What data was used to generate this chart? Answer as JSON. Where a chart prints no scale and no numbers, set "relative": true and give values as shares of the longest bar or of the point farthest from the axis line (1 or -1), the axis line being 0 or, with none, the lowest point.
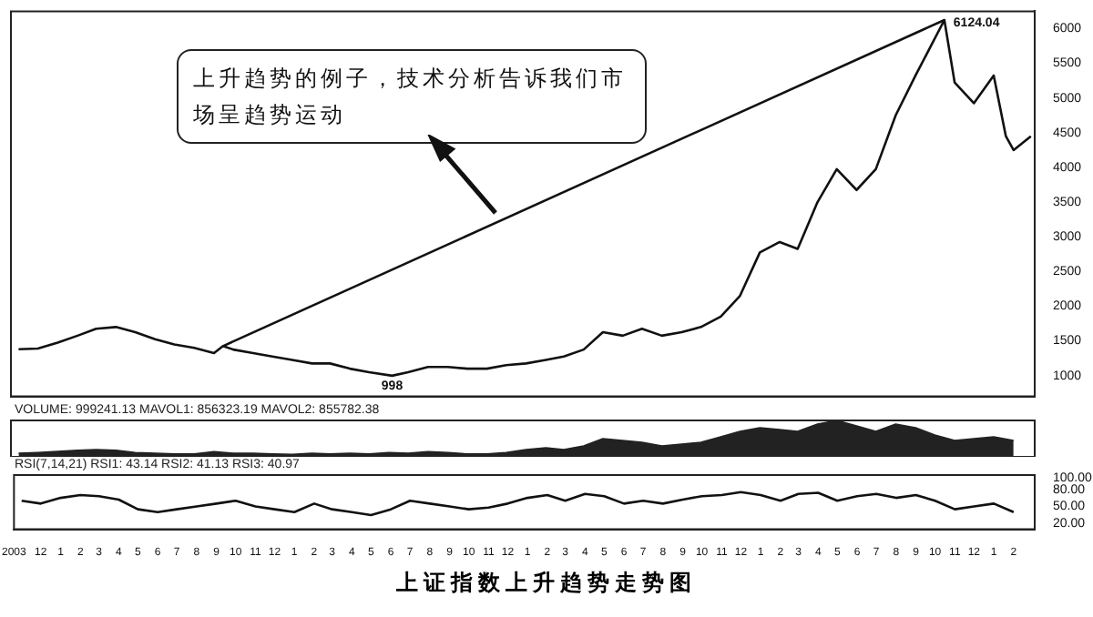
{
  "chart_data": [
    {
      "type": "line",
      "title": "上证指数上升趋势走势图",
      "x": [
        "2003-11",
        "2003-12",
        "2004-01",
        "2004-02",
        "2004-03",
        "2004-04",
        "2004-05",
        "2004-06",
        "2004-07",
        "2004-08",
        "2004-09",
        "2004-09-15",
        "2004-10",
        "2004-11",
        "2004-12",
        "2005-01",
        "2005-02",
        "2005-03",
        "2005-04",
        "2005-05",
        "2005-06-06",
        "2005-07",
        "2005-08",
        "2005-09",
        "2005-10",
        "2005-11",
        "2005-12",
        "2006-01",
        "2006-02",
        "2006-03",
        "2006-04",
        "2006-05",
        "2006-06",
        "2006-07",
        "2006-08",
        "2006-09",
        "2006-10",
        "2006-11",
        "2006-12",
        "2007-01",
        "2007-02",
        "2007-03",
        "2007-04",
        "2007-05",
        "2007-06",
        "2007-07",
        "2007-08",
        "2007-09",
        "2007-10-16",
        "2007-11",
        "2007-12",
        "2008-01",
        "2008-01-20",
        "2008-02",
        "2008-02-28"
      ],
      "series": [
        {
          "type": "line",
          "color": "#111111",
          "values": [
            1380,
            1390,
            1475,
            1575,
            1675,
            1700,
            1625,
            1525,
            1450,
            1400,
            1325,
            1425,
            1375,
            1325,
            1275,
            1225,
            1175,
            1175,
            1100,
            1050,
            998,
            1050,
            1125,
            1125,
            1100,
            1100,
            1150,
            1175,
            1225,
            1275,
            1375,
            1625,
            1575,
            1675,
            1575,
            1625,
            1700,
            1850,
            2150,
            2775,
            2925,
            2825,
            3500,
            3975,
            3675,
            3975,
            4750,
            5325,
            6124.04,
            5225,
            4925,
            5325,
            4450,
            4250,
            4450
          ]
        },
        {
          "type": "line",
          "color": "#111111",
          "x": [
            "2004-09-15",
            "2007-10-16"
          ],
          "values": [
            1425,
            6124.04
          ]
        }
      ],
      "xlim": [
        "2003-10-20",
        "2008-03-05"
      ],
      "ylim": [
        700,
        6250
      ],
      "yticks": [
        1000,
        1500,
        2000,
        2500,
        3000,
        3500,
        4000,
        4500,
        5000,
        5500,
        6000
      ],
      "tick_labels": "y",
      "grid": false,
      "legend": false,
      "annotations": [
        "上升趋势的例子，技术分析告诉我们市场呈趋势运动",
        {
          "text": "6124.04",
          "x": "2007-10-16",
          "y": 6124.04
        },
        {
          "text": "998",
          "x": "2005-06-06",
          "y": 998
        }
      ]
    },
    {
      "type": "area",
      "subtitle": "VOLUME: 999241.13 MAVOL1: 856323.19 MAVOL2: 855782.38",
      "relative": true,
      "x": [
        "2003-11",
        "2003-12",
        "2004-01",
        "2004-02",
        "2004-03",
        "2004-04",
        "2004-05",
        "2004-06",
        "2004-07",
        "2004-08",
        "2004-09",
        "2004-10",
        "2004-11",
        "2004-12",
        "2005-01",
        "2005-02",
        "2005-03",
        "2005-04",
        "2005-05",
        "2005-06",
        "2005-07",
        "2005-08",
        "2005-09",
        "2005-10",
        "2005-11",
        "2005-12",
        "2006-01",
        "2006-02",
        "2006-03",
        "2006-04",
        "2006-05",
        "2006-06",
        "2006-07",
        "2006-08",
        "2006-09",
        "2006-10",
        "2006-11",
        "2006-12",
        "2007-01",
        "2007-02",
        "2007-03",
        "2007-04",
        "2007-05",
        "2007-06",
        "2007-07",
        "2007-08",
        "2007-09",
        "2007-10",
        "2007-11",
        "2007-12",
        "2008-01",
        "2008-02"
      ],
      "series": [
        {
          "color": "#222222",
          "values": [
            0.1,
            0.12,
            0.15,
            0.18,
            0.2,
            0.18,
            0.12,
            0.1,
            0.08,
            0.08,
            0.14,
            0.1,
            0.1,
            0.08,
            0.07,
            0.1,
            0.08,
            0.1,
            0.08,
            0.12,
            0.1,
            0.14,
            0.12,
            0.08,
            0.08,
            0.12,
            0.2,
            0.25,
            0.2,
            0.3,
            0.5,
            0.45,
            0.4,
            0.3,
            0.35,
            0.4,
            0.55,
            0.7,
            0.8,
            0.75,
            0.7,
            0.9,
            1,
            0.85,
            0.7,
            0.9,
            0.8,
            0.6,
            0.45,
            0.5,
            0.55,
            0.45
          ]
        }
      ],
      "xlim": [
        "2003-10-20",
        "2008-03-05"
      ],
      "tick_labels": false,
      "grid": false,
      "legend": false
    },
    {
      "type": "line",
      "subtitle": "RSI(7,14,21) RSI1: 43.14 RSI2: 41.13 RSI3: 40.97",
      "x": [
        "2003-11",
        "2003-12",
        "2004-01",
        "2004-02",
        "2004-03",
        "2004-04",
        "2004-05",
        "2004-06",
        "2004-07",
        "2004-08",
        "2004-09",
        "2004-10",
        "2004-11",
        "2004-12",
        "2005-01",
        "2005-02",
        "2005-03",
        "2005-04",
        "2005-05",
        "2005-06",
        "2005-07",
        "2005-08",
        "2005-09",
        "2005-10",
        "2005-11",
        "2005-12",
        "2006-01",
        "2006-02",
        "2006-03",
        "2006-04",
        "2006-05",
        "2006-06",
        "2006-07",
        "2006-08",
        "2006-09",
        "2006-10",
        "2006-11",
        "2006-12",
        "2007-01",
        "2007-02",
        "2007-03",
        "2007-04",
        "2007-05",
        "2007-06",
        "2007-07",
        "2007-08",
        "2007-09",
        "2007-10",
        "2007-11",
        "2007-12",
        "2008-01",
        "2008-02"
      ],
      "series": [
        {
          "color": "#111111",
          "values": [
            60,
            55,
            65,
            70,
            68,
            62,
            45,
            40,
            45,
            50,
            55,
            60,
            50,
            45,
            40,
            55,
            45,
            40,
            35,
            45,
            60,
            55,
            50,
            45,
            48,
            55,
            65,
            70,
            60,
            72,
            68,
            55,
            60,
            55,
            62,
            68,
            70,
            75,
            70,
            60,
            72,
            74,
            60,
            68,
            72,
            65,
            70,
            60,
            45,
            50,
            55,
            40
          ]
        }
      ],
      "xlim": [
        "2003-10-20",
        "2008-03-05"
      ],
      "ylim": [
        10,
        105
      ],
      "yticks": [
        {
          "value": 20,
          "label": "20.00"
        },
        {
          "value": 50,
          "label": "50.00"
        },
        {
          "value": 80,
          "label": "80.00"
        },
        {
          "value": 100,
          "label": "100.00"
        }
      ],
      "xticks": [
        {
          "value": "2003-10-20",
          "label": "2003"
        },
        {
          "value": "2003-12",
          "label": "12"
        },
        {
          "value": "2004-01",
          "label": "1"
        },
        {
          "value": "2004-02",
          "label": "2"
        },
        {
          "value": "2004-03",
          "label": "3"
        },
        {
          "value": "2004-04",
          "label": "4"
        },
        {
          "value": "2004-05",
          "label": "5"
        },
        {
          "value": "2004-06",
          "label": "6"
        },
        {
          "value": "2004-07",
          "label": "7"
        },
        {
          "value": "2004-08",
          "label": "8"
        },
        {
          "value": "2004-09",
          "label": "9"
        },
        {
          "value": "2004-10",
          "label": "10"
        },
        {
          "value": "2004-11",
          "label": "11"
        },
        {
          "value": "2004-12",
          "label": "12"
        },
        {
          "value": "2005-01",
          "label": "1"
        },
        {
          "value": "2005-02",
          "label": "2"
        },
        {
          "value": "2005-03",
          "label": "3"
        },
        {
          "value": "2005-04",
          "label": "4"
        },
        {
          "value": "2005-05",
          "label": "5"
        },
        {
          "value": "2005-06",
          "label": "6"
        },
        {
          "value": "2005-07",
          "label": "7"
        },
        {
          "value": "2005-08",
          "label": "8"
        },
        {
          "value": "2005-09",
          "label": "9"
        },
        {
          "value": "2005-10",
          "label": "10"
        },
        {
          "value": "2005-11",
          "label": "11"
        },
        {
          "value": "2005-12",
          "label": "12"
        },
        {
          "value": "2006-01",
          "label": "1"
        },
        {
          "value": "2006-02",
          "label": "2"
        },
        {
          "value": "2006-03",
          "label": "3"
        },
        {
          "value": "2006-04",
          "label": "4"
        },
        {
          "value": "2006-05",
          "label": "5"
        },
        {
          "value": "2006-06",
          "label": "6"
        },
        {
          "value": "2006-07",
          "label": "7"
        },
        {
          "value": "2006-08",
          "label": "8"
        },
        {
          "value": "2006-09",
          "label": "9"
        },
        {
          "value": "2006-10",
          "label": "10"
        },
        {
          "value": "2006-11",
          "label": "11"
        },
        {
          "value": "2006-12",
          "label": "12"
        },
        {
          "value": "2007-01",
          "label": "1"
        },
        {
          "value": "2007-02",
          "label": "2"
        },
        {
          "value": "2007-03",
          "label": "3"
        },
        {
          "value": "2007-04",
          "label": "4"
        },
        {
          "value": "2007-05",
          "label": "5"
        },
        {
          "value": "2007-06",
          "label": "6"
        },
        {
          "value": "2007-07",
          "label": "7"
        },
        {
          "value": "2007-08",
          "label": "8"
        },
        {
          "value": "2007-09",
          "label": "9"
        },
        {
          "value": "2007-10",
          "label": "10"
        },
        {
          "value": "2007-11",
          "label": "11"
        },
        {
          "value": "2007-12",
          "label": "12"
        },
        {
          "value": "2008-01",
          "label": "1"
        },
        {
          "value": "2008-02",
          "label": "2"
        }
      ],
      "grid": false,
      "legend": false
    }
  ]
}
